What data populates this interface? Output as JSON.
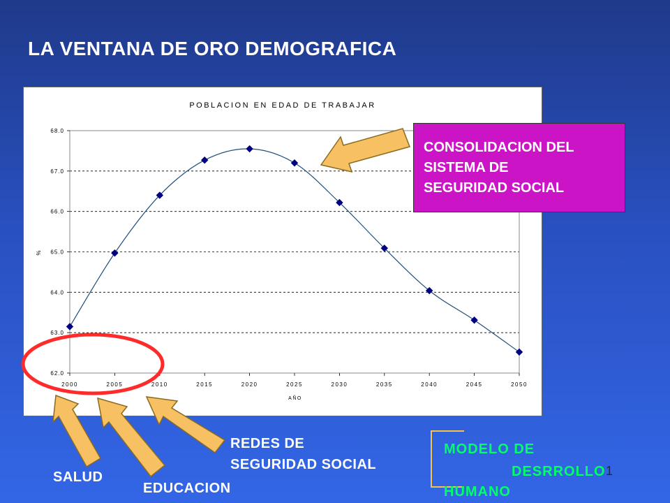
{
  "slide": {
    "title": "LA VENTANA DE ORO DEMOGRAFICA",
    "page_number": "1"
  },
  "callout": {
    "lines": [
      "CONSOLIDACION DEL",
      "SISTEMA DE",
      "SEGURIDAD SOCIAL"
    ],
    "color": "#cc14c7"
  },
  "labels": {
    "redes": [
      "REDES DE",
      "SEGURIDAD SOCIAL"
    ],
    "salud": "SALUD",
    "educacion": "EDUCACION"
  },
  "modelo": {
    "line1": "MODELO DE",
    "line2": "DESRROLLO",
    "line3": "HUMANO",
    "color": "#00ff66"
  },
  "colors": {
    "arrow_fill": "#f7c062",
    "ellipse": "#ff2a2a",
    "line": "#1f4e79",
    "marker": "#000080"
  },
  "chart_data": {
    "type": "line",
    "title": "POBLACION EN EDAD DE TRABAJAR",
    "xlabel": "AÑO",
    "ylabel": "%",
    "x": [
      2000,
      2005,
      2010,
      2015,
      2020,
      2025,
      2030,
      2035,
      2040,
      2045,
      2050
    ],
    "values": [
      63.15,
      64.97,
      66.4,
      67.27,
      67.55,
      67.2,
      66.22,
      65.09,
      64.04,
      63.31,
      62.52
    ],
    "ylim": [
      62.0,
      68.0
    ],
    "yticks": [
      "62.0",
      "63.0",
      "64.0",
      "65.0",
      "66.0",
      "67.0",
      "68.0"
    ],
    "xticks": [
      "2000",
      "2005",
      "2010",
      "2015",
      "2020",
      "2025",
      "2030",
      "2035",
      "2040",
      "2045",
      "2050"
    ],
    "grid": true
  }
}
